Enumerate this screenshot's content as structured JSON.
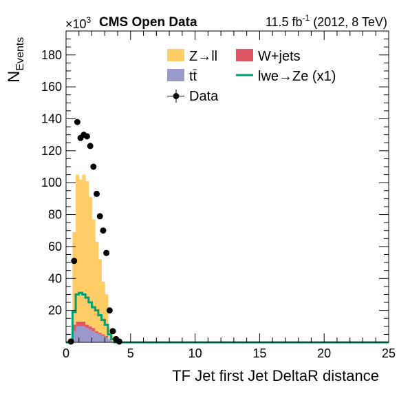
{
  "header": {
    "experiment": "CMS Open Data",
    "lumi_value": "11.5 fb",
    "lumi_exp": "-1",
    "lumi_rest": " (2012, 8 TeV)",
    "scale_base": "×10",
    "scale_exp": "3"
  },
  "chart_data": {
    "type": "bar",
    "stacked": true,
    "xlabel": "TF Jet first Jet DeltaR distance",
    "ylabel_main": "N",
    "ylabel_sub": "Events",
    "y_multiplier": 1000,
    "xlim": [
      0,
      25
    ],
    "ylim": [
      0,
      195
    ],
    "x_ticks": [
      0,
      5,
      10,
      15,
      20,
      25
    ],
    "y_ticks": [
      20,
      40,
      60,
      80,
      100,
      120,
      140,
      160,
      180
    ],
    "bin_width": 0.25,
    "x_start": 0.5,
    "legend_position": "top-center",
    "grid": false,
    "colors": {
      "zll": "#ffcc66",
      "wjets": "#e05563",
      "ttbar": "#9999cc",
      "signal": "#009e73",
      "data": "#000000"
    },
    "series": [
      {
        "key": "ttbar",
        "name": "tt̄",
        "values": [
          7,
          10,
          10,
          10,
          9,
          8,
          7,
          6,
          5,
          4,
          3,
          2,
          1
        ]
      },
      {
        "key": "wjets",
        "name": "W+jets",
        "values": [
          4,
          3,
          3,
          3,
          2,
          2,
          2,
          1,
          1,
          1,
          1,
          0,
          0
        ]
      },
      {
        "key": "zll",
        "name": "Z→ll",
        "values": [
          58,
          92,
          89,
          92,
          90,
          81,
          68,
          56,
          46,
          33,
          26,
          7,
          3
        ]
      }
    ],
    "signal": {
      "name": "lwe→Ze (x1)",
      "bin_edges": [
        0.5,
        0.75,
        1.0,
        1.25,
        1.5,
        1.75,
        2.0,
        2.25,
        2.5,
        2.75,
        3.0,
        3.25,
        3.5,
        3.75
      ],
      "values": [
        19,
        30,
        31,
        30,
        28,
        25,
        22,
        20,
        17,
        14,
        11,
        5,
        2
      ]
    },
    "data": {
      "name": "Data",
      "x": [
        0.375,
        0.625,
        0.875,
        1.125,
        1.375,
        1.625,
        1.875,
        2.125,
        2.375,
        2.625,
        2.875,
        3.125,
        3.375,
        3.625,
        3.875,
        4.125
      ],
      "y": [
        0.5,
        51,
        138,
        128,
        130,
        129,
        123,
        110,
        93,
        79,
        70,
        56,
        20,
        7,
        2,
        0.5
      ]
    }
  }
}
